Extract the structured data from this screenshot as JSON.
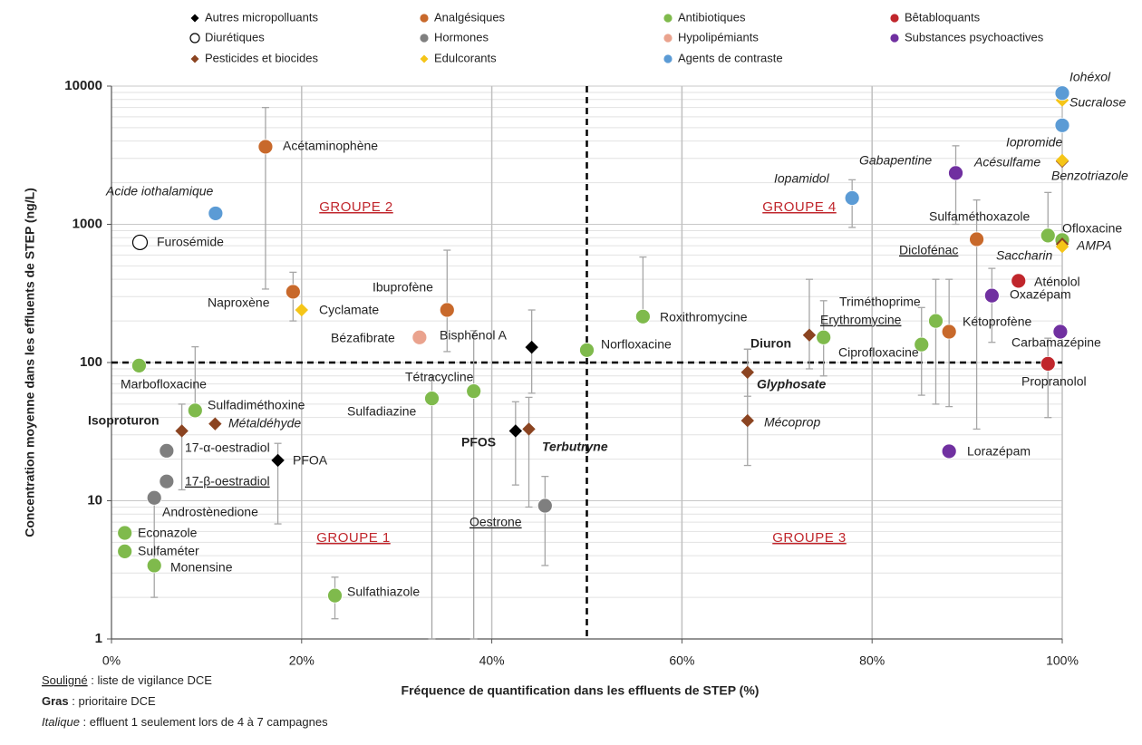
{
  "chart_data": {
    "type": "scatter",
    "x_label": "Fréquence de quantification dans les effluents de STEP (%)",
    "y_label": "Concentration moyenne dans les effluents de STEP (ng/L)",
    "xlim": [
      0,
      100
    ],
    "xticks": [
      {
        "value": 0,
        "label": "0%"
      },
      {
        "value": 20,
        "label": "20%"
      },
      {
        "value": 40,
        "label": "40%"
      },
      {
        "value": 60,
        "label": "60%"
      },
      {
        "value": 80,
        "label": "80%"
      },
      {
        "value": 100,
        "label": "100%"
      }
    ],
    "ylim": [
      1,
      10000
    ],
    "log_y": true,
    "yticks": [
      1,
      10,
      100,
      1000,
      10000
    ],
    "yminorticks": [
      2,
      3,
      4,
      5,
      6,
      7,
      8,
      9,
      20,
      30,
      40,
      50,
      60,
      70,
      80,
      90,
      200,
      300,
      400,
      500,
      600,
      700,
      800,
      900,
      2000,
      3000,
      4000,
      5000,
      6000,
      7000,
      8000,
      9000
    ],
    "grid": true,
    "thresholds": {
      "x": 50,
      "y": 100
    },
    "annotations": [
      "GROUPE 1",
      "GROUPE 2",
      "GROUPE 3",
      "GROUPE 4"
    ],
    "footnotes": [
      {
        "term": "Souligné",
        "style": "underline",
        "text": " : liste de vigilance DCE"
      },
      {
        "term": "Gras",
        "style": "bold",
        "text": " : prioritaire DCE"
      },
      {
        "term": "Italique",
        "style": "italic",
        "text": " : effluent 1 seulement lors de 4 à 7 campagnes"
      }
    ],
    "series": [
      {
        "name": "Autres micropolluants",
        "color": "#000000",
        "marker": "diamond",
        "x": [
          44.2,
          42.5,
          17.5
        ],
        "values": [
          129,
          32,
          19.6
        ],
        "err_low": [
          60,
          13,
          6.8
        ],
        "err_high": [
          240,
          52,
          26
        ],
        "labels": [
          "Bisphénol A",
          "PFOS",
          "PFOA"
        ],
        "label_styles": [
          null,
          "bold",
          null
        ]
      },
      {
        "name": "Analgésiques",
        "color": "#c8692b",
        "marker": "circle",
        "x": [
          16.2,
          19.1,
          35.3,
          91.0,
          88.1
        ],
        "values": [
          3640,
          325,
          240,
          780,
          167
        ],
        "err_low": [
          340,
          200,
          120,
          33,
          48
        ],
        "err_high": [
          7000,
          450,
          650,
          1500,
          400
        ],
        "labels": [
          "Acétaminophène",
          "Naproxène",
          "Ibuprofène",
          "Diclofénac",
          "Kétoprofène"
        ],
        "label_styles": [
          null,
          null,
          null,
          "underline",
          null
        ]
      },
      {
        "name": "Antibiotiques",
        "color": "#7fba4c",
        "marker": "circle",
        "x": [
          2.9,
          8.8,
          33.7,
          38.1,
          50.0,
          55.9,
          74.9,
          86.7,
          85.2,
          98.5,
          100,
          1.4,
          1.4,
          4.5,
          23.5
        ],
        "values": [
          95,
          45,
          55,
          62,
          123,
          215,
          152,
          200,
          135,
          830,
          770,
          5.85,
          4.3,
          3.4,
          2.06
        ],
        "err_low": [
          null,
          null,
          1,
          1,
          null,
          null,
          80,
          50,
          58,
          null,
          null,
          null,
          null,
          2,
          1.4
        ],
        "err_high": [
          null,
          130,
          80,
          170,
          null,
          580,
          280,
          400,
          250,
          1700,
          null,
          null,
          null,
          10,
          2.8
        ],
        "labels": [
          "Marbofloxacine",
          "Sulfadiméthoxine",
          "Sulfadiazine",
          "Tétracycline",
          "Norfloxacine",
          "Roxithromycine",
          "Erythromycine",
          "Triméthoprime",
          "Ciprofloxacine",
          "Sulfaméthoxazole",
          "Ofloxacine",
          "Econazole",
          "Sulfaméter",
          "Monensine",
          "Sulfathiazole"
        ],
        "label_styles": [
          null,
          null,
          null,
          null,
          null,
          null,
          "underline",
          null,
          null,
          null,
          null,
          null,
          null,
          null,
          null
        ]
      },
      {
        "name": "Bêtabloquants",
        "color": "#c0262c",
        "marker": "circle",
        "x": [
          95.4,
          98.5
        ],
        "values": [
          390,
          98
        ],
        "err_low": [
          null,
          40
        ],
        "err_high": [
          null,
          150
        ],
        "labels": [
          "Aténolol",
          "Propranolol"
        ],
        "label_styles": [
          null,
          null
        ]
      },
      {
        "name": "Diurétiques",
        "color": "#000000",
        "marker": "circle",
        "hollow": true,
        "x": [
          3.0
        ],
        "values": [
          740
        ],
        "err_low": [
          null
        ],
        "err_high": [
          null
        ],
        "labels": [
          "Furosémide"
        ],
        "label_styles": [
          null
        ]
      },
      {
        "name": "Hormones",
        "color": "#7f7f7f",
        "marker": "circle",
        "x": [
          5.8,
          5.8,
          4.5,
          45.6
        ],
        "values": [
          23,
          13.8,
          10.5,
          9.2
        ],
        "err_low": [
          null,
          null,
          null,
          3.4
        ],
        "err_high": [
          null,
          null,
          null,
          15
        ],
        "labels": [
          "17-α-oestradiol",
          "17-β-oestradiol",
          "Androstènedione",
          "Oestrone"
        ],
        "label_styles": [
          null,
          "underline",
          null,
          "underline"
        ]
      },
      {
        "name": "Hypolipémiants",
        "color": "#eaa38e",
        "marker": "circle",
        "x": [
          32.4
        ],
        "values": [
          152
        ],
        "err_low": [
          null
        ],
        "err_high": [
          null
        ],
        "labels": [
          "Bézafibrate"
        ],
        "label_styles": [
          null
        ]
      },
      {
        "name": "Substances psychoactives",
        "color": "#7030a0",
        "marker": "circle",
        "x": [
          88.8,
          92.6,
          99.8,
          88.1
        ],
        "values": [
          2350,
          305,
          167,
          22.8
        ],
        "err_low": [
          1000,
          140,
          null,
          null
        ],
        "err_high": [
          3700,
          480,
          null,
          null
        ],
        "labels": [
          "Gabapentine",
          "Oxazépam",
          "Carbamazépine",
          "Lorazépam"
        ],
        "label_styles": [
          "italic",
          null,
          null,
          null
        ]
      },
      {
        "name": "Pesticides et biocides",
        "color": "#8b4421",
        "marker": "diamond",
        "x": [
          10.9,
          7.4,
          43.9,
          66.9,
          66.9,
          73.4,
          100,
          100
        ],
        "values": [
          36,
          32,
          33,
          85,
          38,
          158,
          2860,
          720
        ],
        "err_low": [
          null,
          12,
          9,
          57,
          18,
          90,
          null,
          null
        ],
        "err_high": [
          null,
          50,
          56,
          125,
          125,
          400,
          null,
          null
        ],
        "labels": [
          "Métaldéhyde",
          "Isoproturon",
          "Terbutryne",
          "Glyphosate",
          "Mécoprop",
          "Diuron",
          "Benzotriazole",
          "AMPA"
        ],
        "label_styles": [
          "italic",
          "bold",
          "bold italic",
          "bold italic",
          "italic",
          "bold",
          "italic",
          "italic"
        ]
      },
      {
        "name": "Edulcorants",
        "color": "#f5c518",
        "marker": "diamond",
        "x": [
          20.0,
          100,
          100,
          100
        ],
        "values": [
          240,
          7900,
          690,
          2900
        ],
        "err_low": [
          null,
          null,
          null,
          null
        ],
        "err_high": [
          null,
          null,
          null,
          null
        ],
        "labels": [
          "Cyclamate",
          "Sucralose",
          "Saccharin",
          "Acésulfame"
        ],
        "label_styles": [
          null,
          "italic",
          "italic",
          "italic"
        ]
      },
      {
        "name": "Agents de contraste",
        "color": "#5b9bd5",
        "marker": "circle",
        "x": [
          10.95,
          77.9,
          100,
          100
        ],
        "values": [
          1200,
          1550,
          8900,
          5200
        ],
        "err_low": [
          null,
          950,
          null,
          null
        ],
        "err_high": [
          null,
          2100,
          null,
          null
        ],
        "labels": [
          "Acide iothalamique",
          "Iopamidol",
          "Iohéxol",
          "Iopromide"
        ],
        "label_styles": [
          "italic",
          "italic",
          "italic",
          "italic"
        ]
      }
    ]
  }
}
